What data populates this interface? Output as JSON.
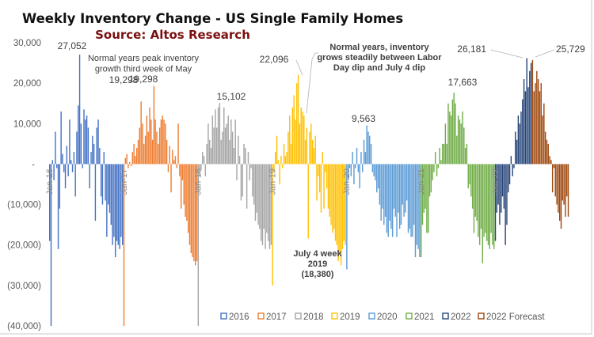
{
  "chart_data": {
    "type": "bar",
    "title": "Weekly Inventory Change - US Single Family Homes",
    "subtitle": "Source: Altos Research",
    "xlabel": "",
    "ylabel": "",
    "ylim": [
      -40000,
      30000
    ],
    "yticks": [
      {
        "value": 30000,
        "label": "30,000"
      },
      {
        "value": 20000,
        "label": "20,000"
      },
      {
        "value": 10000,
        "label": "10,000"
      },
      {
        "value": 0,
        "label": "-"
      },
      {
        "value": -10000,
        "label": "(10,000)"
      },
      {
        "value": -20000,
        "label": "(20,000)"
      },
      {
        "value": -30000,
        "label": "(30,000)"
      },
      {
        "value": -40000,
        "label": "(40,000)"
      }
    ],
    "xticks": [
      "Jan-16",
      "Jan-17",
      "Jan-18",
      "Jan-19",
      "Jan-20",
      "Jan-21",
      "Jan-22"
    ],
    "grid": false,
    "legend_position": "bottom-right",
    "series": [
      {
        "name": "2016",
        "color": "#4472c4",
        "values": [
          -19000,
          -40000,
          1000,
          -4000,
          8000,
          -1000,
          -21000,
          -11000,
          13000,
          2500,
          -2000,
          -6000,
          4500,
          -3000,
          11000,
          1000,
          -2000,
          3000,
          -8000,
          8000,
          14500,
          27052,
          10000,
          -1000,
          13500,
          11000,
          12000,
          9000,
          -6000,
          3000,
          7000,
          5000,
          -14000,
          9000,
          11000,
          4000,
          -8000,
          -10000,
          3000,
          -9000,
          -18000,
          -10000,
          -12000,
          -15000,
          -20000,
          -18000,
          -23000,
          -19000,
          -20000,
          -21000,
          -18000,
          -20000
        ]
      },
      {
        "name": "2017",
        "color": "#ed7d31",
        "values": [
          -40000,
          1500,
          2500,
          -1000,
          500,
          -500,
          3000,
          5000,
          2000,
          4000,
          6000,
          9000,
          15500,
          10000,
          5000,
          7000,
          12000,
          8000,
          14000,
          11000,
          6000,
          19298,
          11000,
          8000,
          5000,
          9000,
          11000,
          12000,
          11000,
          10000,
          6000,
          -2000,
          4500,
          -7000,
          3500,
          1000,
          2000,
          -1000,
          10000,
          -3000,
          -11000,
          -4000,
          -10000,
          -13000,
          -14000,
          -17000,
          -20000,
          -22000,
          -23000,
          -24000,
          -25000,
          -24000
        ]
      },
      {
        "name": "2018",
        "color": "#a5a5a5",
        "values": [
          -40000,
          -3000,
          -1500,
          3000,
          2000,
          -3000,
          5000,
          10000,
          6000,
          4000,
          12000,
          9000,
          13500,
          9000,
          14000,
          15102,
          6000,
          8000,
          14000,
          9000,
          10000,
          12000,
          6000,
          11000,
          8000,
          4000,
          11000,
          -4000,
          7000,
          2000,
          -9000,
          -8000,
          5000,
          4000,
          -11000,
          3000,
          -4000,
          -1000,
          -8000,
          -10000,
          -14000,
          -12000,
          -15000,
          -16000,
          -19000,
          -20000,
          -16000,
          -21000,
          -17000,
          -19000,
          -21000,
          -20000
        ]
      },
      {
        "name": "2019",
        "color": "#ffc000",
        "values": [
          -30000,
          -2000,
          3000,
          7000,
          1000,
          -5000,
          2000,
          -1000,
          5000,
          2000,
          3000,
          8000,
          12000,
          5000,
          14000,
          17000,
          11000,
          20000,
          22096,
          10000,
          14000,
          13000,
          12000,
          6000,
          9000,
          -18380,
          8000,
          10000,
          6000,
          4000,
          7000,
          -9000,
          -3000,
          -7000,
          -12000,
          3000,
          -11000,
          -2000,
          -6000,
          -11000,
          -13000,
          -15000,
          -17000,
          -16000,
          -19000,
          -20000,
          -24000,
          -22000,
          -25000,
          -21000,
          -19000,
          -20000
        ]
      },
      {
        "name": "2020",
        "color": "#5b9bd5",
        "values": [
          -26000,
          -4000,
          -1000,
          -3000,
          3000,
          -5000,
          -1000,
          4000,
          -2000,
          -6000,
          3000,
          -2000,
          6000,
          3000,
          9563,
          8000,
          7000,
          5000,
          -2000,
          -3000,
          -4000,
          -7000,
          -6000,
          -10000,
          -14000,
          -11000,
          -15000,
          -13000,
          -17000,
          -18000,
          -14000,
          -16000,
          -18000,
          -11000,
          -13000,
          -18000,
          -12000,
          -16000,
          -15000,
          -10000,
          -13000,
          -12000,
          -9000,
          -17000,
          -16000,
          -18000,
          -18000,
          -15000,
          -23000,
          -20000,
          -21000,
          -23000
        ]
      },
      {
        "name": "2021",
        "color": "#70ad47",
        "values": [
          -23000,
          -15000,
          -12000,
          -11000,
          -17000,
          -17000,
          -8000,
          -7000,
          -4000,
          -2000,
          3000,
          -3000,
          -1000,
          4000,
          1000,
          5000,
          5000,
          10000,
          5000,
          15000,
          13000,
          12000,
          16000,
          17663,
          15000,
          7000,
          12000,
          11000,
          10000,
          13000,
          9000,
          4000,
          5000,
          -6000,
          -5000,
          -8000,
          -11000,
          -17000,
          -13000,
          -14000,
          -18000,
          -20000,
          -16000,
          -24500,
          -18000,
          -17000,
          -19000,
          -20000,
          -21000,
          -17000,
          -20000,
          -21000
        ]
      },
      {
        "name": "2022",
        "color": "#264478",
        "values": [
          -19000,
          -12000,
          -10000,
          -15000,
          -12000,
          -8000,
          -11000,
          -20000,
          -15000,
          -7000,
          -5000,
          2000,
          -3000,
          -1000,
          8000,
          6000,
          12000,
          10000,
          13000,
          16000,
          21000,
          18000,
          26181,
          19000,
          23000,
          25000
        ]
      },
      {
        "name": "2022 Forecast",
        "color": "#9e480e",
        "values": [
          25729,
          18000,
          20000,
          23000,
          21000,
          18000,
          20000,
          12000,
          15000,
          8000,
          6000,
          5000,
          2000,
          1000,
          -7000,
          -1000,
          -8000,
          -10000,
          -12000,
          -14000,
          -16000,
          -9000,
          -10000,
          -13000,
          -8000,
          -13000
        ]
      }
    ],
    "data_labels": [
      {
        "series": "2016",
        "text": "27,052"
      },
      {
        "series": "2017",
        "text": "19,298"
      },
      {
        "series": "2018",
        "text": "15,102"
      },
      {
        "series": "2019",
        "text": "22,096"
      },
      {
        "series": "2020",
        "text": "9,563"
      },
      {
        "series": "2021",
        "text": "17,663"
      },
      {
        "series": "2022",
        "text": "26,181"
      },
      {
        "series": "2022 Forecast",
        "text": "25,729"
      }
    ],
    "annotations": [
      {
        "id": "may-peak",
        "lines": [
          "Normal years peak inventory",
          "growth third week of May",
          "19,298"
        ]
      },
      {
        "id": "labor-day",
        "lines": [
          "Normal years, inventory",
          "grows steadily between Labor",
          "Day dip and July 4 dip"
        ]
      },
      {
        "id": "july4",
        "lines": [
          "July 4 week",
          "2019",
          "(18,380)"
        ]
      }
    ]
  }
}
